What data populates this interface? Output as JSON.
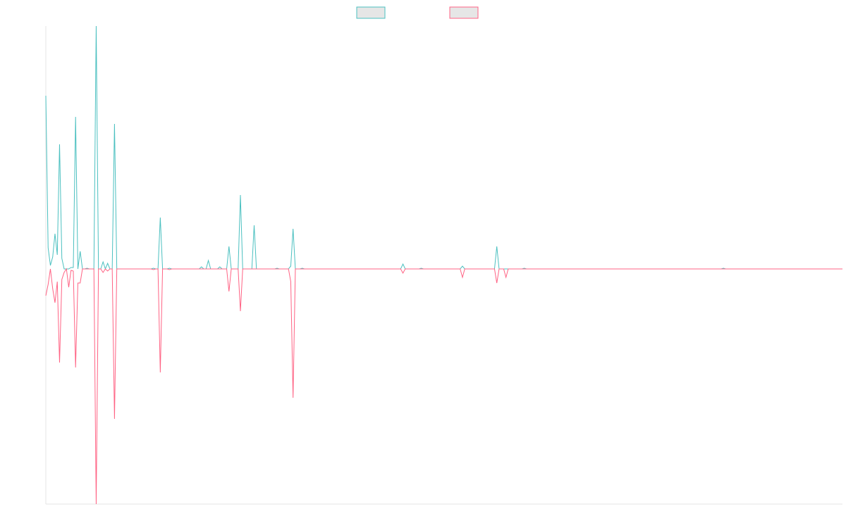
{
  "chart_data": {
    "type": "line",
    "ylim": [
      -334,
      345
    ],
    "legend": "top",
    "series": [
      {
        "color": "#4bc0c0",
        "values": [
          246,
          30,
          5,
          17,
          50,
          20,
          177,
          15,
          0,
          0,
          0,
          2,
          2,
          216,
          0,
          25,
          0,
          0,
          1,
          0,
          0,
          0,
          345,
          0,
          0,
          10,
          0,
          8,
          0,
          0,
          206,
          0,
          0,
          0,
          0,
          0,
          0,
          0,
          0,
          0,
          0,
          0,
          0,
          0,
          0,
          0,
          0,
          1,
          0,
          0,
          73,
          0,
          0,
          0,
          1,
          0,
          0,
          0,
          0,
          0,
          0,
          0,
          0,
          0,
          0,
          0,
          0,
          0,
          3,
          0,
          0,
          12,
          0,
          0,
          0,
          0,
          3,
          0,
          0,
          0,
          32,
          0,
          0,
          0,
          0,
          105,
          0,
          0,
          0,
          0,
          0,
          62,
          0,
          0,
          0,
          0,
          0,
          0,
          0,
          0,
          0,
          1,
          0,
          0,
          0,
          0,
          0,
          4,
          57,
          0,
          0,
          0,
          1,
          0,
          0,
          0,
          0,
          0,
          0,
          0,
          0,
          0,
          0,
          0,
          0,
          0,
          0,
          0,
          0,
          0,
          0,
          0,
          0,
          0,
          0,
          0,
          0,
          0,
          0,
          0,
          0,
          0,
          0,
          0,
          0,
          0,
          0,
          0,
          0,
          0,
          0,
          0,
          0,
          0,
          0,
          0,
          7,
          0,
          0,
          0,
          0,
          0,
          0,
          0,
          1,
          0,
          0,
          0,
          0,
          0,
          0,
          0,
          0,
          0,
          0,
          0,
          0,
          0,
          0,
          0,
          0,
          0,
          4,
          0,
          0,
          0,
          0,
          0,
          0,
          0,
          0,
          0,
          0,
          0,
          0,
          0,
          0,
          32,
          0,
          0,
          0,
          0,
          0,
          0,
          0,
          0,
          0,
          0,
          0,
          1,
          0,
          0,
          0,
          0,
          0,
          0,
          0,
          0,
          0,
          0,
          0,
          0,
          0,
          0,
          0,
          0,
          0,
          0,
          0,
          0,
          0,
          0,
          0,
          0,
          0,
          0,
          0,
          0,
          0,
          0,
          0,
          0,
          0,
          0,
          0,
          0,
          0,
          0,
          0,
          0,
          0,
          0,
          0,
          0,
          0,
          0,
          0,
          0,
          0,
          0,
          0,
          0,
          0,
          0,
          0,
          0,
          0,
          0,
          0,
          0,
          0,
          0,
          0,
          0,
          0,
          0,
          0,
          0,
          0,
          0,
          0,
          0,
          0,
          0,
          0,
          0,
          0,
          0,
          0,
          0,
          0,
          0,
          0,
          0,
          0,
          0,
          1,
          0,
          0,
          0,
          0,
          0,
          0,
          0,
          0,
          0,
          0,
          0,
          0,
          0,
          0,
          0,
          0,
          0,
          0,
          0,
          0,
          0,
          0,
          0,
          0,
          0,
          0,
          0,
          0,
          0,
          0,
          0,
          0,
          0,
          0,
          0,
          0,
          0,
          0,
          0,
          0,
          0,
          0,
          0,
          0,
          0,
          0,
          0,
          0,
          0,
          0,
          0,
          0
        ]
      },
      {
        "color": "#ff6384",
        "values": [
          -38,
          -22,
          0,
          -28,
          -48,
          -18,
          -133,
          -15,
          -5,
          0,
          -26,
          -2,
          -3,
          -140,
          -20,
          -20,
          0,
          0,
          0,
          0,
          0,
          0,
          -334,
          0,
          0,
          -5,
          0,
          -3,
          0,
          0,
          -213,
          0,
          0,
          0,
          0,
          0,
          0,
          0,
          0,
          0,
          0,
          0,
          0,
          0,
          0,
          0,
          0,
          -1,
          0,
          0,
          -147,
          0,
          0,
          0,
          -1,
          0,
          0,
          0,
          0,
          0,
          0,
          0,
          0,
          0,
          0,
          0,
          0,
          0,
          0,
          0,
          0,
          0,
          0,
          0,
          0,
          0,
          0,
          0,
          0,
          0,
          -32,
          0,
          0,
          0,
          0,
          -60,
          0,
          0,
          0,
          0,
          0,
          0,
          0,
          0,
          0,
          0,
          0,
          0,
          0,
          0,
          0,
          0,
          0,
          0,
          0,
          0,
          0,
          -18,
          -183,
          0,
          0,
          0,
          0,
          0,
          0,
          0,
          0,
          0,
          0,
          0,
          0,
          0,
          0,
          0,
          0,
          0,
          0,
          0,
          0,
          0,
          0,
          0,
          0,
          0,
          0,
          0,
          0,
          0,
          0,
          0,
          0,
          0,
          0,
          0,
          0,
          0,
          0,
          0,
          0,
          0,
          0,
          0,
          0,
          0,
          0,
          0,
          -6,
          0,
          0,
          0,
          0,
          0,
          0,
          0,
          0,
          0,
          0,
          0,
          0,
          0,
          0,
          0,
          0,
          0,
          0,
          0,
          0,
          0,
          0,
          0,
          0,
          0,
          -12,
          0,
          0,
          0,
          0,
          0,
          0,
          0,
          0,
          0,
          0,
          0,
          0,
          0,
          0,
          -20,
          0,
          0,
          0,
          -12,
          0,
          0,
          0,
          0,
          0,
          0,
          0,
          0,
          0,
          0,
          0,
          0,
          0,
          0,
          0,
          0,
          0,
          0,
          0,
          0,
          0,
          0,
          0,
          0,
          0,
          0,
          0,
          0,
          0,
          0,
          0,
          0,
          0,
          0,
          0,
          0,
          0,
          0,
          0,
          0,
          0,
          0,
          0,
          0,
          0,
          0,
          0,
          0,
          0,
          0,
          0,
          0,
          0,
          0,
          0,
          0,
          0,
          0,
          0,
          0,
          0,
          0,
          0,
          0,
          0,
          0,
          0,
          0,
          0,
          0,
          0,
          0,
          0,
          0,
          0,
          0,
          0,
          0,
          0,
          0,
          0,
          0,
          0,
          0,
          0,
          0,
          0,
          0,
          0,
          0,
          0,
          0,
          0,
          0,
          0,
          0,
          0,
          0,
          0,
          0,
          0,
          0,
          0,
          0,
          0,
          0,
          0,
          0,
          0,
          0,
          0,
          0,
          0,
          0,
          0,
          0,
          0,
          0,
          0,
          0,
          0,
          0,
          0,
          0,
          0,
          0,
          0,
          0,
          0,
          0,
          0,
          0,
          0,
          0,
          0,
          0,
          0,
          0,
          0,
          0,
          0,
          0,
          0,
          0,
          0,
          0,
          0
        ]
      }
    ]
  }
}
